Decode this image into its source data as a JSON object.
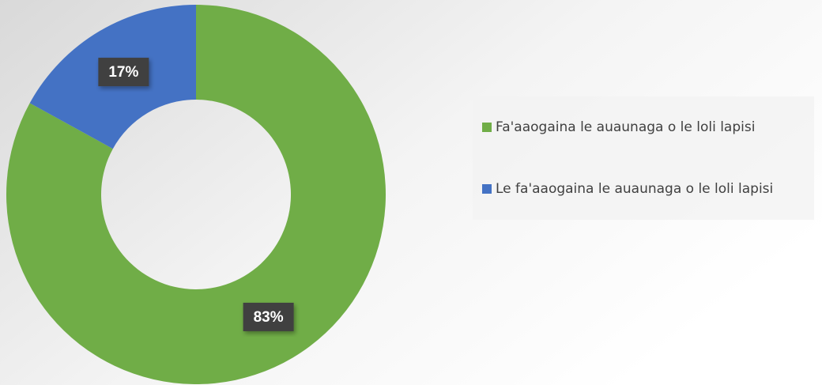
{
  "chart_data": {
    "type": "pie",
    "categories": [
      "Fa'aaogaina le auaunaga o le loli lapisi",
      "Le fa'aaogaina le auaunaga o le loli lapisi"
    ],
    "values": [
      83,
      17
    ],
    "value_labels": [
      "83%",
      "17%"
    ],
    "colors": [
      "#70ad47",
      "#4472c4"
    ],
    "donut": true,
    "legend": "right"
  }
}
